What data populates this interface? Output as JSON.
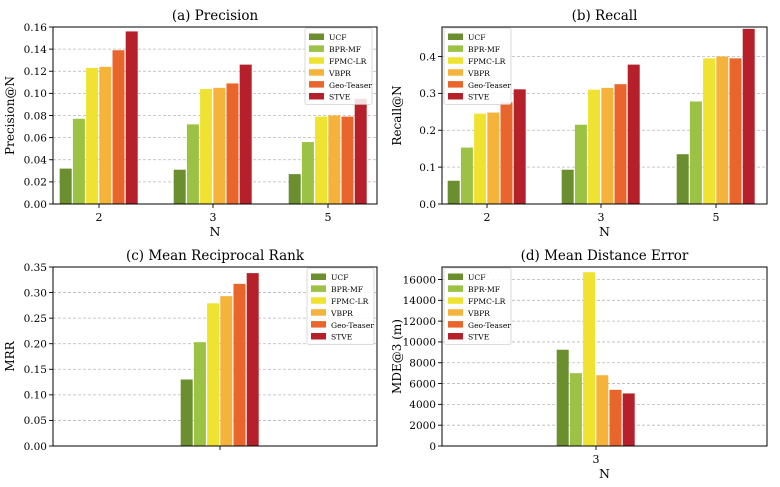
{
  "chart_data": [
    {
      "type": "bar",
      "title": "(a) Precision",
      "xlabel": "N",
      "ylabel": "Precision@N",
      "categories": [
        "2",
        "3",
        "5"
      ],
      "ylim": [
        0,
        0.16
      ],
      "yticks": [
        0.0,
        0.02,
        0.04,
        0.06,
        0.08,
        0.1,
        0.12,
        0.14,
        0.16
      ],
      "ytick_labels": [
        "0.00",
        "0.02",
        "0.04",
        "0.06",
        "0.08",
        "0.10",
        "0.12",
        "0.14",
        "0.16"
      ],
      "grid": "horizontal dashed",
      "legend_position": "top-right",
      "series": [
        {
          "name": "UCF",
          "values": [
            0.032,
            0.031,
            0.027
          ]
        },
        {
          "name": "BPR-MF",
          "values": [
            0.077,
            0.072,
            0.056
          ]
        },
        {
          "name": "FPMC-LR",
          "values": [
            0.123,
            0.104,
            0.079
          ]
        },
        {
          "name": "VBPR",
          "values": [
            0.124,
            0.105,
            0.08
          ]
        },
        {
          "name": "Geo-Teaser",
          "values": [
            0.139,
            0.109,
            0.079
          ]
        },
        {
          "name": "STVE",
          "values": [
            0.156,
            0.126,
            0.095
          ]
        }
      ]
    },
    {
      "type": "bar",
      "title": "(b) Recall",
      "xlabel": "N",
      "ylabel": "Recall@N",
      "categories": [
        "2",
        "3",
        "5"
      ],
      "ylim": [
        0,
        0.48
      ],
      "yticks": [
        0.0,
        0.1,
        0.2,
        0.3,
        0.4
      ],
      "ytick_labels": [
        "0.0",
        "0.1",
        "0.2",
        "0.3",
        "0.4"
      ],
      "grid": "horizontal dashed",
      "legend_position": "top-left",
      "series": [
        {
          "name": "UCF",
          "values": [
            0.063,
            0.093,
            0.135
          ]
        },
        {
          "name": "BPR-MF",
          "values": [
            0.153,
            0.215,
            0.278
          ]
        },
        {
          "name": "FPMC-LR",
          "values": [
            0.245,
            0.31,
            0.395
          ]
        },
        {
          "name": "VBPR",
          "values": [
            0.248,
            0.315,
            0.4
          ]
        },
        {
          "name": "Geo-Teaser",
          "values": [
            0.276,
            0.325,
            0.395
          ]
        },
        {
          "name": "STVE",
          "values": [
            0.311,
            0.378,
            0.475
          ]
        }
      ]
    },
    {
      "type": "bar",
      "title": "(c) Mean Reciprocal Rank",
      "xlabel": "",
      "ylabel": "MRR",
      "categories": [
        ""
      ],
      "ylim": [
        0,
        0.35
      ],
      "yticks": [
        0.0,
        0.05,
        0.1,
        0.15,
        0.2,
        0.25,
        0.3,
        0.35
      ],
      "ytick_labels": [
        "0.00",
        "0.05",
        "0.10",
        "0.15",
        "0.20",
        "0.25",
        "0.30",
        "0.35"
      ],
      "grid": "horizontal dashed",
      "legend_position": "top-right",
      "series": [
        {
          "name": "UCF",
          "values": [
            0.13
          ]
        },
        {
          "name": "BPR-MF",
          "values": [
            0.203
          ]
        },
        {
          "name": "FPMC-LR",
          "values": [
            0.279
          ]
        },
        {
          "name": "VBPR",
          "values": [
            0.293
          ]
        },
        {
          "name": "Geo-Teaser",
          "values": [
            0.317
          ]
        },
        {
          "name": "STVE",
          "values": [
            0.338
          ]
        }
      ]
    },
    {
      "type": "bar",
      "title": "(d) Mean Distance Error",
      "xlabel": "N",
      "ylabel": "MDE@3 (m)",
      "categories": [
        "3"
      ],
      "ylim": [
        0,
        17200
      ],
      "yticks": [
        0,
        2000,
        4000,
        6000,
        8000,
        10000,
        12000,
        14000,
        16000
      ],
      "ytick_labels": [
        "0",
        "2000",
        "4000",
        "6000",
        "8000",
        "10000",
        "12000",
        "14000",
        "16000"
      ],
      "grid": "horizontal dashed",
      "legend_position": "top-left",
      "series": [
        {
          "name": "UCF",
          "values": [
            9250
          ]
        },
        {
          "name": "BPR-MF",
          "values": [
            7000
          ]
        },
        {
          "name": "FPMC-LR",
          "values": [
            16700
          ]
        },
        {
          "name": "VBPR",
          "values": [
            6800
          ]
        },
        {
          "name": "Geo-Teaser",
          "values": [
            5400
          ]
        },
        {
          "name": "STVE",
          "values": [
            5050
          ]
        }
      ]
    }
  ],
  "colors": {
    "UCF": "#6b8e2f",
    "BPR-MF": "#9bc244",
    "FPMC-LR": "#f0e230",
    "VBPR": "#f6b33b",
    "Geo-Teaser": "#e8662b",
    "STVE": "#b5202a"
  }
}
